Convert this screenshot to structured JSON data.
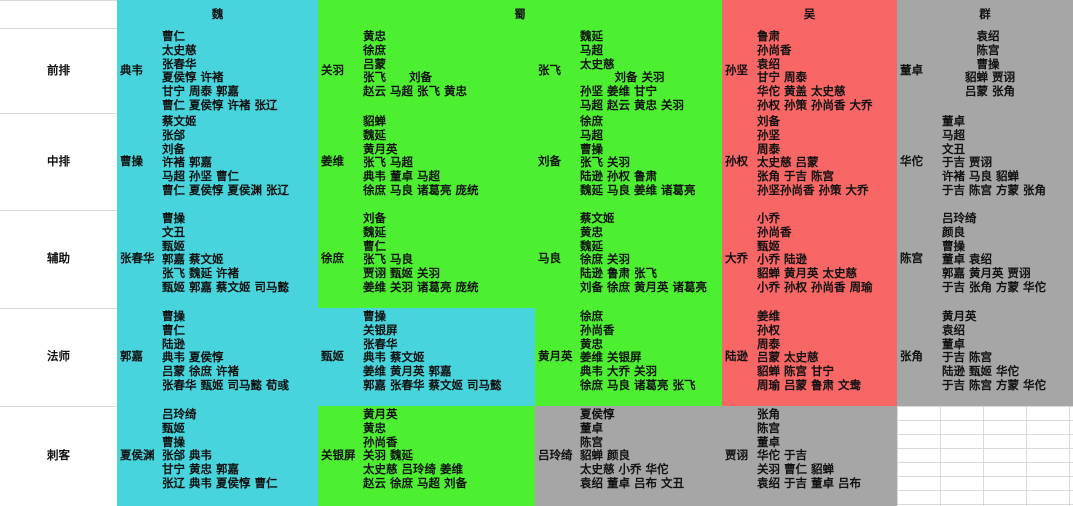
{
  "header": {
    "factions": [
      {
        "name": "魏",
        "color": "#47d4dc"
      },
      {
        "name": "蜀",
        "color": "#4cf030"
      },
      {
        "name": "吴",
        "color": "#f86666"
      },
      {
        "name": "群",
        "color": "#a6a6a6"
      }
    ]
  },
  "rows": [
    {
      "label": "前排",
      "cells": [
        {
          "color": "#47d4dc",
          "main": "典韦",
          "lines": [
            "曹仁",
            "太史慈",
            "张春华",
            "夏侯惇 许褚",
            "甘宁 周泰 郭嘉",
            "曹仁 夏侯惇 许褚 张辽"
          ]
        },
        {
          "color": "#4cf030",
          "main": "关羽",
          "lines": [
            "黄忠",
            "徐庶",
            "吕蒙",
            "张飞　　刘备",
            "赵云 马超 张飞 黄忠"
          ]
        },
        {
          "color": "#4cf030",
          "main": "张飞",
          "lines": [
            "魏延",
            "马超",
            "太史慈",
            "　　　刘备 关羽",
            "孙坚 姜维 甘宁",
            "马超 赵云 黄忠 关羽"
          ]
        },
        {
          "color": "#f86666",
          "main": "孙坚",
          "lines": [
            "鲁肃",
            "孙尚香",
            "袁绍",
            "甘宁 周泰",
            "华佗 黄盖 太史慈",
            "孙权 孙策 孙尚香 大乔"
          ]
        },
        {
          "color": "#a6a6a6",
          "main": "董卓",
          "lines": [
            "　　　袁绍",
            "　　　陈宫",
            "　　　曹操",
            "　　貂蝉 贾诩",
            "　　吕蒙 张角"
          ]
        }
      ]
    },
    {
      "label": "中排",
      "cells": [
        {
          "color": "#47d4dc",
          "main": "曹操",
          "lines": [
            "蔡文姬",
            "张郃",
            "刘备",
            "许褚 郭嘉",
            "马超 孙坚 曹仁",
            "曹仁 夏侯惇 夏侯渊 张辽"
          ]
        },
        {
          "color": "#4cf030",
          "main": "姜维",
          "lines": [
            "貂蝉",
            "魏延",
            "黄月英",
            "张飞 马超",
            "典韦 董卓 马超",
            "徐庶 马良 诸葛亮 庞统"
          ]
        },
        {
          "color": "#4cf030",
          "main": "刘备",
          "lines": [
            "徐庶",
            "马超",
            "曹操",
            "张飞 关羽",
            "陆逊 孙权 鲁肃",
            "魏延 马良 姜维 诸葛亮"
          ]
        },
        {
          "color": "#f86666",
          "main": "孙权",
          "lines": [
            "刘备",
            "孙坚",
            "周泰",
            "太史慈 吕蒙",
            "张角 于吉 陈宫",
            "孙坚孙尚香 孙策 大乔"
          ]
        },
        {
          "color": "#a6a6a6",
          "main": "华佗",
          "lines": [
            "董卓",
            "马超",
            "文丑",
            "于吉 贾诩",
            "许褚 马良 貂蝉",
            "于吉 陈宫 方蒙 张角"
          ]
        }
      ]
    },
    {
      "label": "辅助",
      "cells": [
        {
          "color": "#47d4dc",
          "main": "张春华",
          "lines": [
            "曹操",
            "文丑",
            "甄姬",
            "郭嘉 蔡文姬",
            "张飞 魏延 许褚",
            "甄姬 郭嘉 蔡文姬 司马懿"
          ]
        },
        {
          "color": "#4cf030",
          "main": "徐庶",
          "lines": [
            "刘备",
            "魏延",
            "曹仁",
            "张飞 马良",
            "贾诩 甄姬 关羽",
            "姜维 关羽 诸葛亮 庞统"
          ]
        },
        {
          "color": "#4cf030",
          "main": "马良",
          "lines": [
            "蔡文姬",
            "黄忠",
            "魏延",
            "徐庶 关羽",
            "陆逊 鲁肃 张飞",
            "刘备 徐庶 黄月英 诸葛亮"
          ]
        },
        {
          "color": "#f86666",
          "main": "大乔",
          "lines": [
            "小乔",
            "孙尚香",
            "甄姬",
            "小乔 陆逊",
            "貂蝉 黄月英 太史慈",
            "小乔 孙权 孙尚香 周瑜"
          ]
        },
        {
          "color": "#a6a6a6",
          "main": "陈宫",
          "lines": [
            "吕玲绮",
            "颜良",
            "曹操",
            "董卓 袁绍",
            "郭嘉 黄月英 贾诩",
            "于吉 张角 方蒙 华佗"
          ]
        }
      ]
    },
    {
      "label": "法师",
      "cells": [
        {
          "color": "#47d4dc",
          "main": "郭嘉",
          "lines": [
            "曹操",
            "曹仁",
            "陆逊",
            "典韦 夏侯惇",
            "吕蒙 徐庶 许褚",
            "张春华 甄姬 司马懿 荀彧"
          ]
        },
        {
          "color": "#47d4dc",
          "main": "甄姬",
          "lines": [
            "曹操",
            "关银屏",
            "张春华",
            "典韦 蔡文姬",
            "姜维 黄月英 郭嘉",
            "郭嘉 张春华 蔡文姬 司马懿"
          ]
        },
        {
          "color": "#4cf030",
          "main": "黄月英",
          "lines": [
            "徐庶",
            "孙尚香",
            "黄忠",
            "姜维 关银屏",
            "典韦 大乔 关羽",
            "徐庶 马良 诸葛亮 张飞"
          ]
        },
        {
          "color": "#f86666",
          "main": "陆逊",
          "lines": [
            "姜维",
            "孙权",
            "周泰",
            "吕蒙 太史慈",
            "貂蝉 陈宫 甘宁",
            "周瑜 吕蒙 鲁肃 文鸯"
          ]
        },
        {
          "color": "#a6a6a6",
          "main": "张角",
          "lines": [
            "黄月英",
            "袁绍",
            "董卓",
            "于吉 陈宫",
            "陆逊 甄姬 华佗",
            "于吉 陈宫 方蒙 华佗"
          ]
        }
      ]
    },
    {
      "label": "刺客",
      "cells": [
        {
          "color": "#47d4dc",
          "main": "夏侯渊",
          "lines": [
            "吕玲绮",
            "甄姬",
            "曹操",
            "张郃 典韦",
            "甘宁 黄忠 郭嘉",
            "张辽 典韦 夏侯惇 曹仁"
          ]
        },
        {
          "color": "#4cf030",
          "main": "关银屏",
          "lines": [
            "黄月英",
            "黄忠",
            "孙尚香",
            "关羽 魏延",
            "太史慈 吕玲绮 姜维",
            "赵云 徐庶 马超 刘备"
          ]
        },
        {
          "color": "#a6a6a6",
          "main": "吕玲绮",
          "lines": [
            "夏侯惇",
            "董卓",
            "陈宫",
            "貂蝉 颜良",
            "太史慈 小乔 华佗",
            "袁绍 董卓 吕布 文丑"
          ]
        },
        {
          "color": "#a6a6a6",
          "main": "贾诩",
          "lines": [
            "张角",
            "陈宫",
            "董卓",
            "华佗 于吉",
            "关羽 曹仁 貂蝉",
            "袁绍 于吉 董卓 吕布"
          ]
        }
      ]
    }
  ]
}
